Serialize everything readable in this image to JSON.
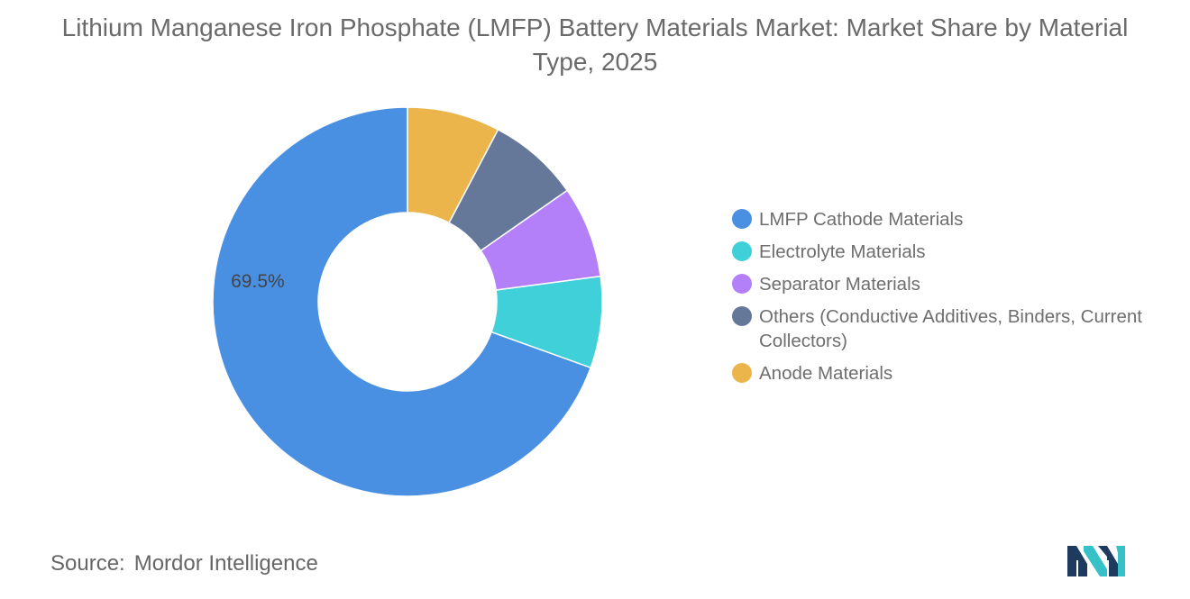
{
  "title": "Lithium Manganese Iron Phosphate (LMFP) Battery Materials Market: Market Share by Material Type, 2025",
  "source": {
    "label": "Source:",
    "value": "Mordor Intelligence"
  },
  "chart_data": {
    "type": "pie",
    "variant": "donut",
    "title": "Lithium Manganese Iron Phosphate (LMFP) Battery Materials Market: Market Share by Material Type, 2025",
    "slices": [
      {
        "name": "LMFP Cathode Materials",
        "value": 69.5,
        "color": "#4a90e2",
        "label": "69.5%"
      },
      {
        "name": "Electrolyte Materials",
        "value": 7.6,
        "color": "#40d0da",
        "label": ""
      },
      {
        "name": "Separator Materials",
        "value": 7.6,
        "color": "#b380fa",
        "label": ""
      },
      {
        "name": "Others (Conductive Additives, Binders, Current Collectors)",
        "value": 7.6,
        "color": "#66789a",
        "label": ""
      },
      {
        "name": "Anode Materials",
        "value": 7.7,
        "color": "#ebb54b",
        "label": ""
      }
    ],
    "legend_position": "right",
    "start_angle": "12 o'clock, counter-clockwise"
  },
  "logo": {
    "icon": "mordor-intelligence-logo-icon",
    "colors": [
      "#1e3a5f",
      "#36c1c9"
    ]
  }
}
